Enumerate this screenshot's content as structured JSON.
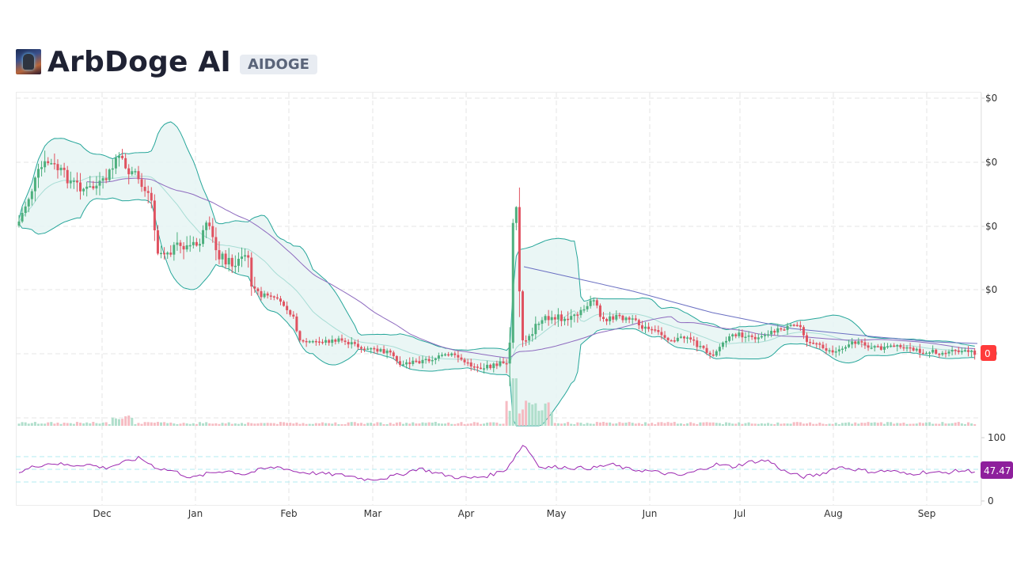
{
  "header": {
    "title": "ArbDoge AI",
    "ticker": "AIDOGE",
    "logo_icon": "arbdoge-logo-icon"
  },
  "colors": {
    "up": "#26a69a",
    "up_candle": "#4caf7d",
    "down": "#ef5350",
    "down_candle": "#e05260",
    "bollinger": "#26a69a",
    "bollinger_fill": "#e6f4f3",
    "bollinger_mid": "#a8ddd5",
    "ma_purple": "#8e6bbf",
    "ma_blue": "#6a6fc2",
    "rsi": "#9c27b0",
    "rsi_bands": "#b2ebf2",
    "grid": "#e6e6e6",
    "price_label_bg": "#ff3b3b",
    "rsi_label_bg": "#8e1f9c"
  },
  "chart_data": {
    "type": "candlestick",
    "title": "ArbDoge AI (AIDOGE)",
    "x_tick_labels": [
      "Dec",
      "Jan",
      "Feb",
      "Mar",
      "Apr",
      "May",
      "Jun",
      "Jul",
      "Aug",
      "Sep"
    ],
    "price_axis": {
      "tick_labels": [
        "$0",
        "$0",
        "$0",
        "$0",
        "$0"
      ],
      "current_price_label": "0"
    },
    "rsi_axis": {
      "tick_labels": [
        "100",
        "0"
      ],
      "current_value_label": "47.47",
      "bands": [
        30,
        50,
        70
      ]
    },
    "indicators": [
      "Bollinger Bands (20)",
      "Moving Average",
      "Long Moving Average",
      "Volume",
      "RSI (14)"
    ],
    "relative_close_series_note": "Relative price levels (0-100 scale of visible chart height), approx. weekly",
    "relative_close": [
      55,
      70,
      82,
      78,
      74,
      72,
      73,
      84,
      72,
      70,
      60,
      46,
      50,
      48,
      53,
      45,
      40,
      32,
      28,
      22,
      16,
      15,
      12,
      15,
      10,
      8,
      6,
      10,
      8,
      4,
      3,
      6,
      10,
      40,
      30,
      22,
      18,
      24,
      26,
      28,
      22,
      20,
      18,
      15,
      12,
      8,
      13,
      14,
      17,
      18,
      12,
      8,
      10,
      13,
      12,
      10,
      8,
      8,
      7,
      7
    ],
    "relative_rsi": [
      44,
      55,
      60,
      56,
      58,
      52,
      60,
      68,
      52,
      47,
      36,
      44,
      48,
      42,
      50,
      54,
      46,
      44,
      42,
      40,
      34,
      36,
      42,
      52,
      44,
      38,
      36,
      40,
      50,
      90,
      52,
      54,
      52,
      52,
      58,
      50,
      48,
      44,
      40,
      48,
      58,
      54,
      62,
      64,
      46,
      38,
      42,
      54,
      50,
      46,
      48,
      42,
      46,
      44,
      48,
      47
    ]
  }
}
